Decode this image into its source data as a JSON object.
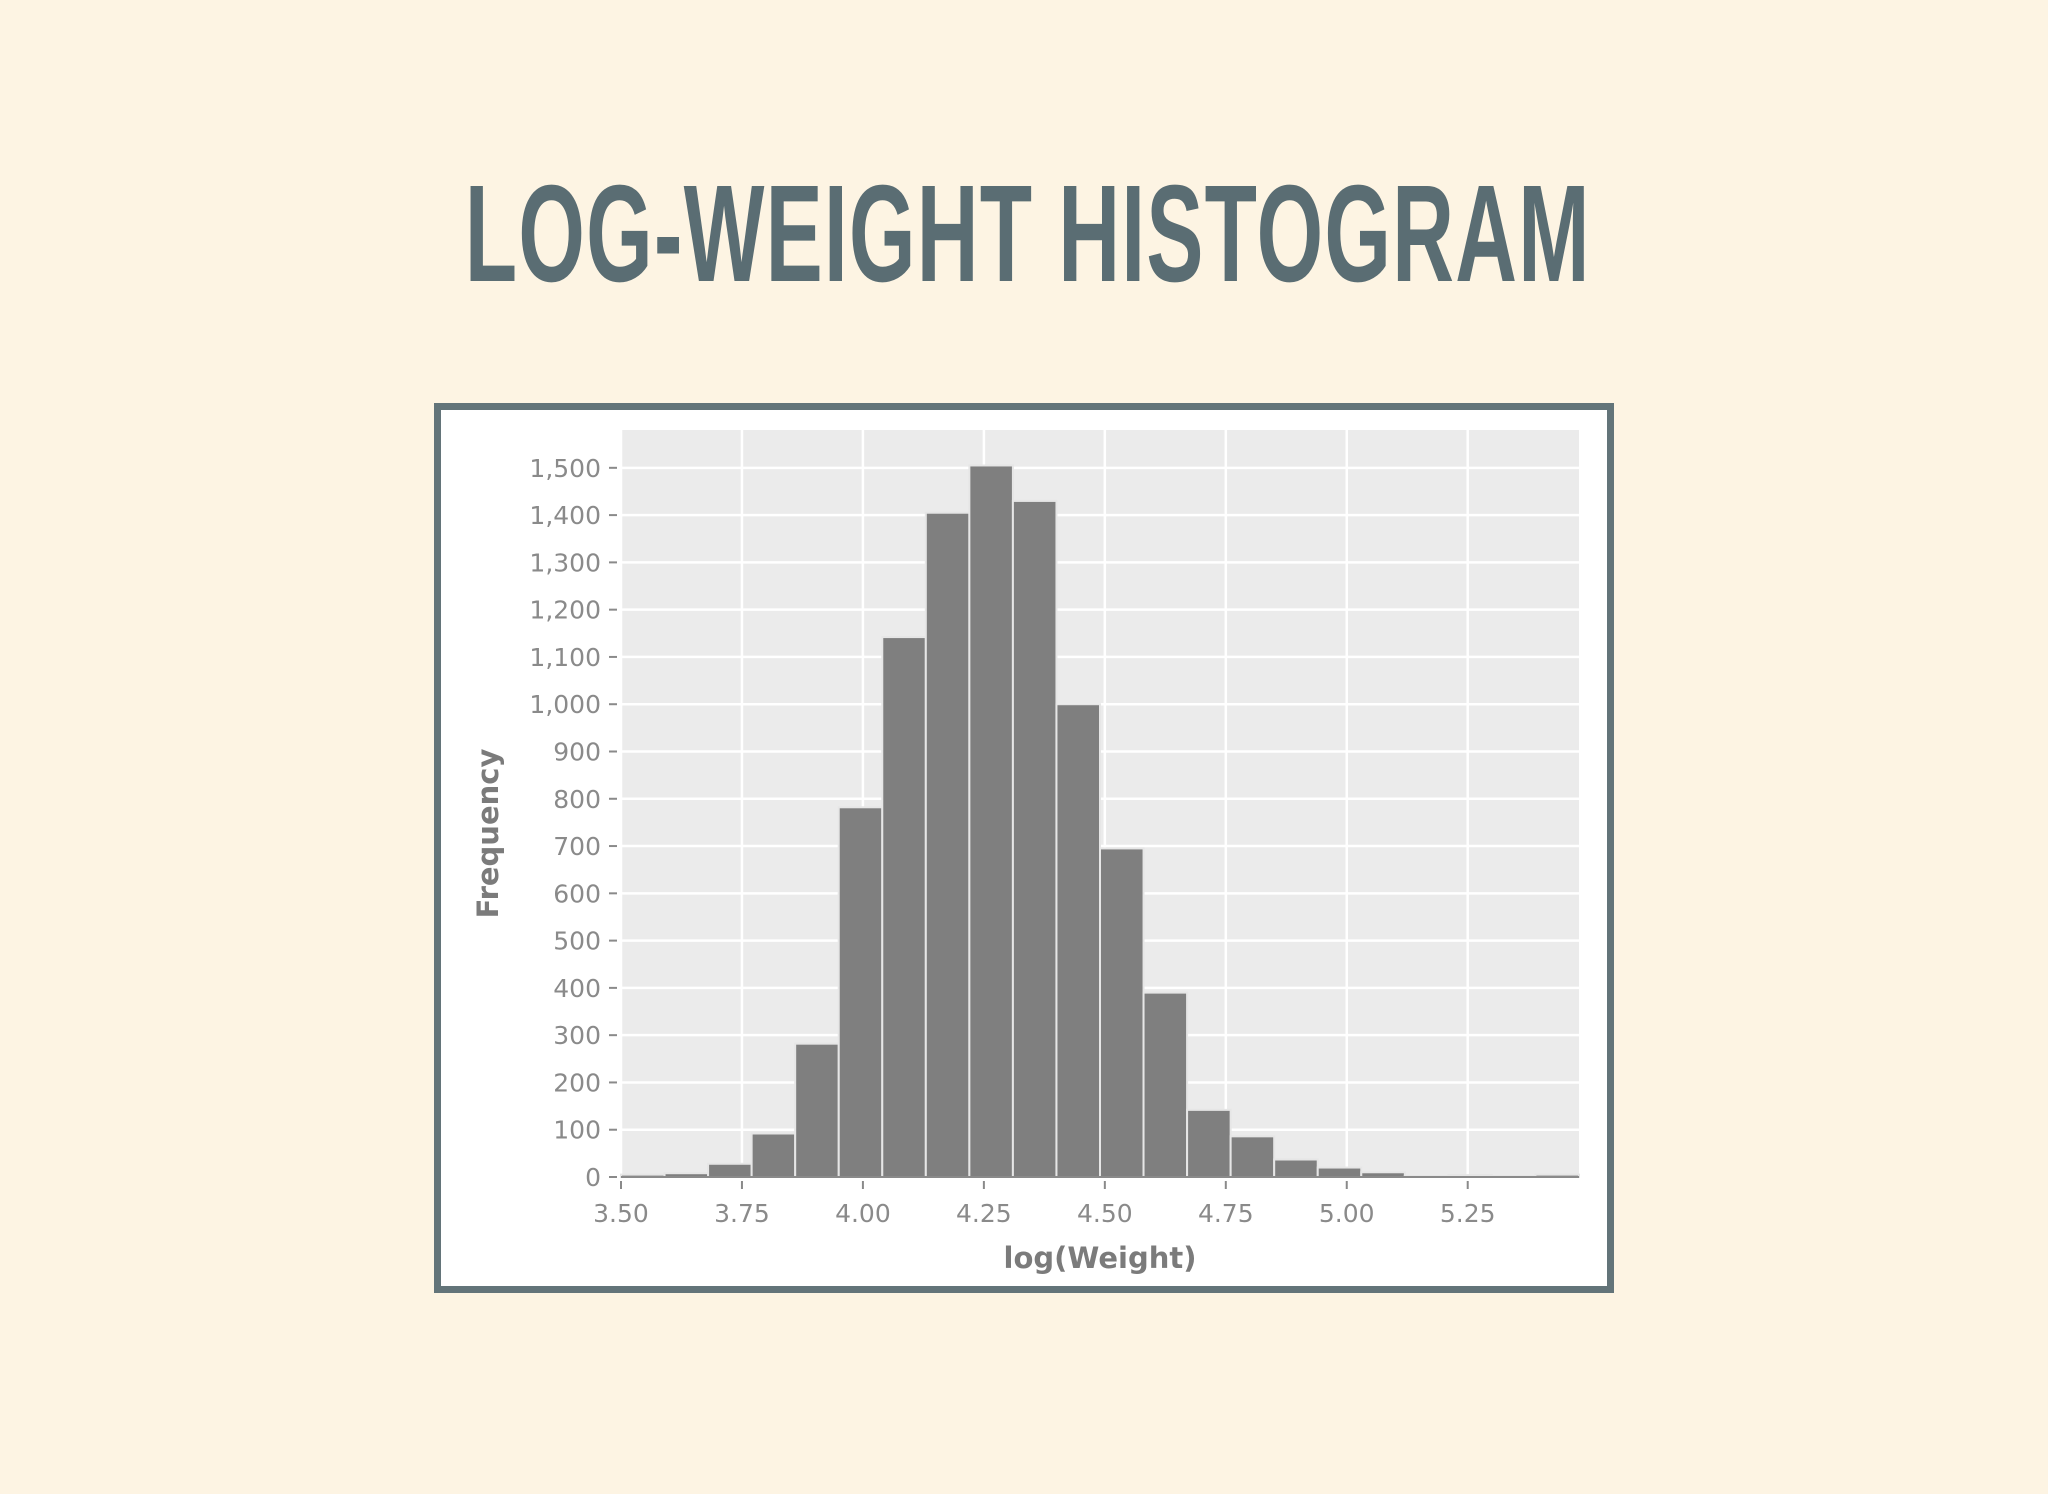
{
  "slide": {
    "title": "LOG-WEIGHT HISTOGRAM"
  },
  "colors": {
    "background": "#fdf4e3",
    "title": "#5a6d73",
    "frame": "#637479",
    "plot_background": "#ebebeb",
    "grid": "#ffffff",
    "bar_fill": "#7f7f7f",
    "bar_edge": "#e6e6e6"
  },
  "chart_data": {
    "type": "bar",
    "title": "",
    "xlabel": "log(Weight)",
    "ylabel": "Frequency",
    "xlim": [
      3.5,
      5.48
    ],
    "ylim": [
      0,
      1580
    ],
    "x_ticks": [
      "3.50",
      "3.75",
      "4.00",
      "4.25",
      "4.50",
      "4.75",
      "5.00",
      "5.25"
    ],
    "x_tick_values": [
      3.5,
      3.75,
      4.0,
      4.25,
      4.5,
      4.75,
      5.0,
      5.25
    ],
    "y_ticks": [
      "0",
      "100",
      "200",
      "300",
      "400",
      "500",
      "600",
      "700",
      "800",
      "900",
      "1,000",
      "1,100",
      "1,200",
      "1,300",
      "1,400",
      "1,500"
    ],
    "y_tick_values": [
      0,
      100,
      200,
      300,
      400,
      500,
      600,
      700,
      800,
      900,
      1000,
      1100,
      1200,
      1300,
      1400,
      1500
    ],
    "grid": true,
    "legend": "none",
    "bins": [
      {
        "start": 3.5,
        "end": 3.59,
        "count": 5
      },
      {
        "start": 3.59,
        "end": 3.68,
        "count": 8
      },
      {
        "start": 3.68,
        "end": 3.77,
        "count": 28
      },
      {
        "start": 3.77,
        "end": 3.86,
        "count": 92
      },
      {
        "start": 3.86,
        "end": 3.95,
        "count": 282
      },
      {
        "start": 3.95,
        "end": 4.04,
        "count": 782
      },
      {
        "start": 4.04,
        "end": 4.13,
        "count": 1142
      },
      {
        "start": 4.13,
        "end": 4.22,
        "count": 1405
      },
      {
        "start": 4.22,
        "end": 4.31,
        "count": 1505
      },
      {
        "start": 4.31,
        "end": 4.4,
        "count": 1430
      },
      {
        "start": 4.4,
        "end": 4.49,
        "count": 1000
      },
      {
        "start": 4.49,
        "end": 4.58,
        "count": 695
      },
      {
        "start": 4.58,
        "end": 4.67,
        "count": 390
      },
      {
        "start": 4.67,
        "end": 4.76,
        "count": 142
      },
      {
        "start": 4.76,
        "end": 4.85,
        "count": 86
      },
      {
        "start": 4.85,
        "end": 4.94,
        "count": 37
      },
      {
        "start": 4.94,
        "end": 5.03,
        "count": 20
      },
      {
        "start": 5.03,
        "end": 5.12,
        "count": 10
      },
      {
        "start": 5.12,
        "end": 5.21,
        "count": 2
      },
      {
        "start": 5.21,
        "end": 5.3,
        "count": 4
      },
      {
        "start": 5.3,
        "end": 5.39,
        "count": 2
      },
      {
        "start": 5.39,
        "end": 5.48,
        "count": 5
      }
    ]
  }
}
